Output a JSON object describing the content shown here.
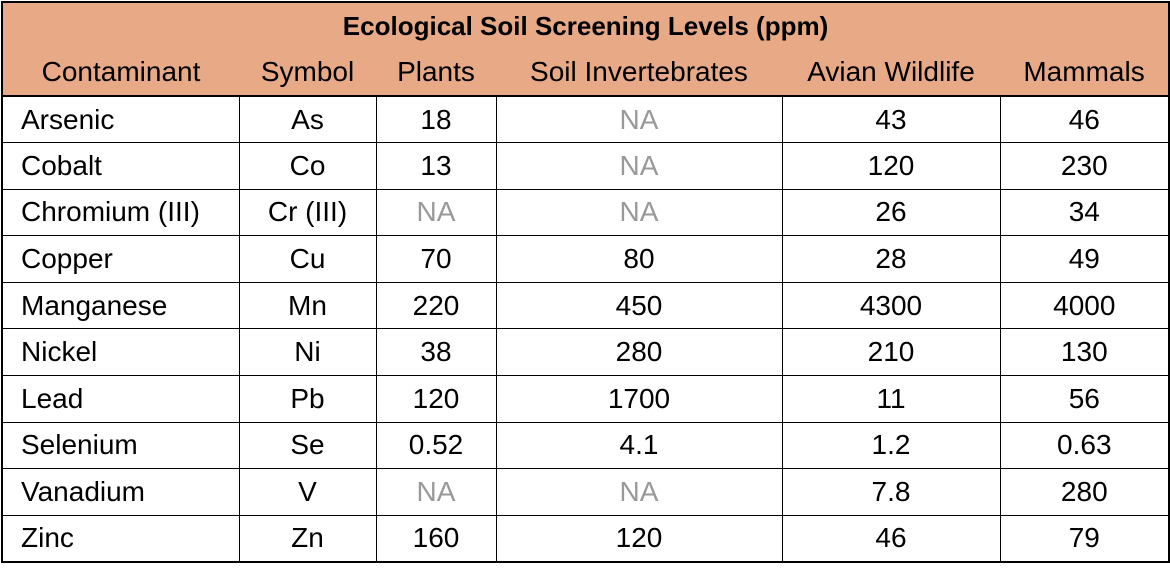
{
  "title": "Ecological Soil Screening Levels (ppm)",
  "colors": {
    "header_bg": "#e8a987",
    "na_text": "#999999",
    "border": "#000000"
  },
  "chart_data": {
    "type": "table",
    "title": "Ecological Soil Screening Levels (ppm)",
    "columns": [
      "Contaminant",
      "Symbol",
      "Plants",
      "Soil Invertebrates",
      "Avian Wildlife",
      "Mammals"
    ],
    "rows": [
      [
        "Arsenic",
        "As",
        "18",
        "NA",
        "43",
        "46"
      ],
      [
        "Cobalt",
        "Co",
        "13",
        "NA",
        "120",
        "230"
      ],
      [
        "Chromium (III)",
        "Cr (III)",
        "NA",
        "NA",
        "26",
        "34"
      ],
      [
        "Copper",
        "Cu",
        "70",
        "80",
        "28",
        "49"
      ],
      [
        "Manganese",
        "Mn",
        "220",
        "450",
        "4300",
        "4000"
      ],
      [
        "Nickel",
        "Ni",
        "38",
        "280",
        "210",
        "130"
      ],
      [
        "Lead",
        "Pb",
        "120",
        "1700",
        "11",
        "56"
      ],
      [
        "Selenium",
        "Se",
        "0.52",
        "4.1",
        "1.2",
        "0.63"
      ],
      [
        "Vanadium",
        "V",
        "NA",
        "NA",
        "7.8",
        "280"
      ],
      [
        "Zinc",
        "Zn",
        "160",
        "120",
        "46",
        "79"
      ]
    ]
  }
}
